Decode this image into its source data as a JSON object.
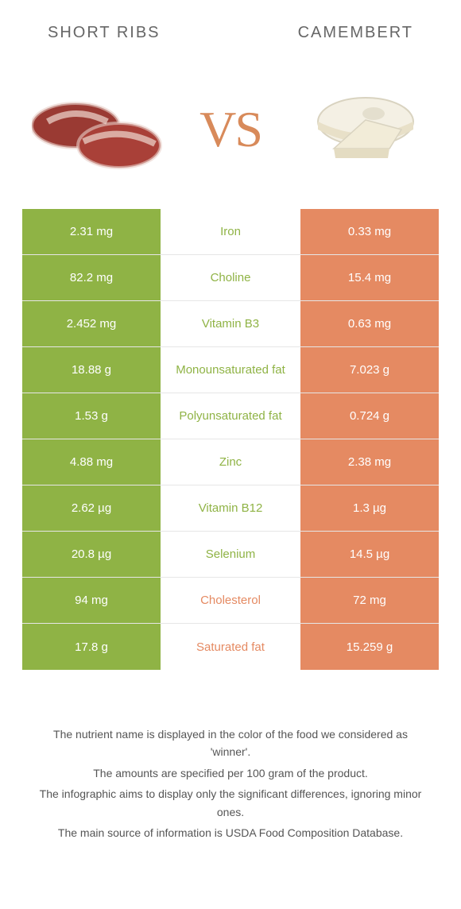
{
  "colors": {
    "left": "#8fb345",
    "right": "#e58a62",
    "nutrient_left": "#8fb345",
    "nutrient_right": "#e58a62",
    "vs": "#d88a5a"
  },
  "header": {
    "left_title": "SHORT RIBS",
    "right_title": "CAMEMBERT"
  },
  "vs_label": "VS",
  "rows": [
    {
      "left": "2.31 mg",
      "name": "Iron",
      "right": "0.33 mg",
      "winner": "left"
    },
    {
      "left": "82.2 mg",
      "name": "Choline",
      "right": "15.4 mg",
      "winner": "left"
    },
    {
      "left": "2.452 mg",
      "name": "Vitamin B3",
      "right": "0.63 mg",
      "winner": "left"
    },
    {
      "left": "18.88 g",
      "name": "Monounsaturated fat",
      "right": "7.023 g",
      "winner": "left"
    },
    {
      "left": "1.53 g",
      "name": "Polyunsaturated fat",
      "right": "0.724 g",
      "winner": "left"
    },
    {
      "left": "4.88 mg",
      "name": "Zinc",
      "right": "2.38 mg",
      "winner": "left"
    },
    {
      "left": "2.62 µg",
      "name": "Vitamin B12",
      "right": "1.3 µg",
      "winner": "left"
    },
    {
      "left": "20.8 µg",
      "name": "Selenium",
      "right": "14.5 µg",
      "winner": "left"
    },
    {
      "left": "94 mg",
      "name": "Cholesterol",
      "right": "72 mg",
      "winner": "right"
    },
    {
      "left": "17.8 g",
      "name": "Saturated fat",
      "right": "15.259 g",
      "winner": "right"
    }
  ],
  "footnotes": [
    "The nutrient name is displayed in the color of the food we considered as 'winner'.",
    "The amounts are specified per 100 gram of the product.",
    "The infographic aims to display only the significant differences, ignoring minor ones.",
    "The main source of information is USDA Food Composition Database."
  ]
}
